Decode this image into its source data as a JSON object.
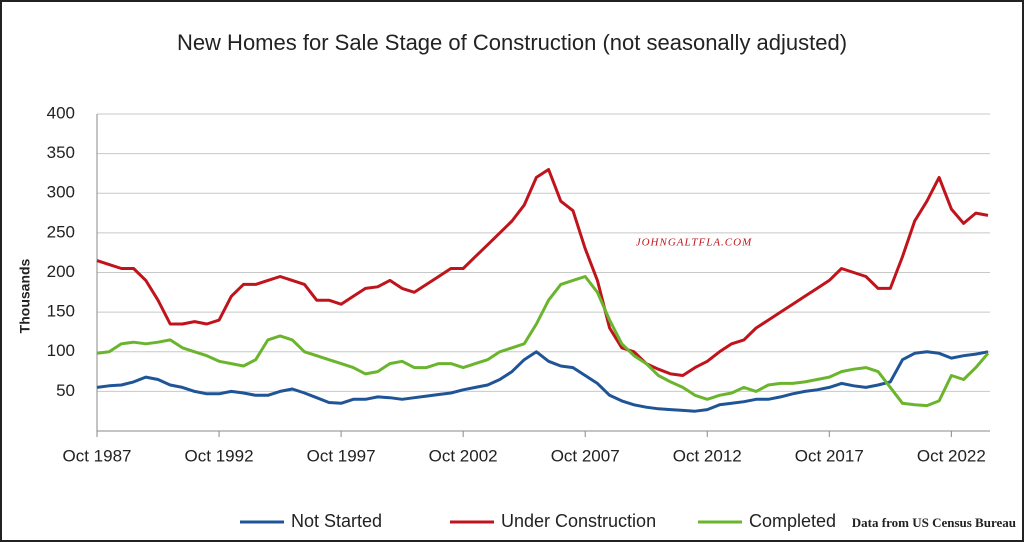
{
  "chart_data": {
    "type": "line",
    "title": "New Homes for Sale Stage of Construction (not seasonally adjusted)",
    "y_label": "Thousands",
    "watermark": "JOHNGALTFLA.COM",
    "source": "Data from US Census Bureau",
    "x": [
      "1987-10",
      "1988-04",
      "1988-10",
      "1989-04",
      "1989-10",
      "1990-04",
      "1990-10",
      "1991-04",
      "1991-10",
      "1992-04",
      "1992-10",
      "1993-04",
      "1993-10",
      "1994-04",
      "1994-10",
      "1995-04",
      "1995-10",
      "1996-04",
      "1996-10",
      "1997-04",
      "1997-10",
      "1998-04",
      "1998-10",
      "1999-04",
      "1999-10",
      "2000-04",
      "2000-10",
      "2001-04",
      "2001-10",
      "2002-04",
      "2002-10",
      "2003-04",
      "2003-10",
      "2004-04",
      "2004-10",
      "2005-04",
      "2005-10",
      "2006-04",
      "2006-10",
      "2007-04",
      "2007-10",
      "2008-04",
      "2008-10",
      "2009-04",
      "2009-10",
      "2010-04",
      "2010-10",
      "2011-04",
      "2011-10",
      "2012-04",
      "2012-10",
      "2013-04",
      "2013-10",
      "2014-04",
      "2014-10",
      "2015-04",
      "2015-10",
      "2016-04",
      "2016-10",
      "2017-04",
      "2017-10",
      "2018-04",
      "2018-10",
      "2019-04",
      "2019-10",
      "2020-04",
      "2020-10",
      "2021-04",
      "2021-10",
      "2022-04",
      "2022-10",
      "2023-04",
      "2023-10",
      "2024-04"
    ],
    "series": [
      {
        "name": "Not Started",
        "color": "#1f5597",
        "values": [
          55,
          57,
          58,
          62,
          68,
          65,
          58,
          55,
          50,
          47,
          47,
          50,
          48,
          45,
          45,
          50,
          53,
          48,
          42,
          36,
          35,
          40,
          40,
          43,
          42,
          40,
          42,
          44,
          46,
          48,
          52,
          55,
          58,
          65,
          75,
          90,
          100,
          88,
          82,
          80,
          70,
          60,
          45,
          38,
          33,
          30,
          28,
          27,
          26,
          25,
          27,
          33,
          35,
          37,
          40,
          40,
          43,
          47,
          50,
          52,
          55,
          60,
          57,
          55,
          58,
          62,
          90,
          98,
          100,
          98,
          92,
          95,
          97,
          100
        ]
      },
      {
        "name": "Under Construction",
        "color": "#c0141c",
        "values": [
          215,
          210,
          205,
          205,
          190,
          165,
          135,
          135,
          138,
          135,
          140,
          170,
          185,
          185,
          190,
          195,
          190,
          185,
          165,
          165,
          160,
          170,
          180,
          182,
          190,
          180,
          175,
          185,
          195,
          205,
          205,
          220,
          235,
          250,
          265,
          285,
          320,
          330,
          290,
          278,
          230,
          190,
          130,
          105,
          100,
          85,
          78,
          72,
          70,
          80,
          88,
          100,
          110,
          115,
          130,
          140,
          150,
          160,
          170,
          180,
          190,
          205,
          200,
          195,
          180,
          180,
          220,
          265,
          290,
          320,
          280,
          262,
          275,
          272
        ]
      },
      {
        "name": "Completed",
        "color": "#6bb52e",
        "values": [
          98,
          100,
          110,
          112,
          110,
          112,
          115,
          105,
          100,
          95,
          88,
          85,
          82,
          90,
          115,
          120,
          115,
          100,
          95,
          90,
          85,
          80,
          72,
          75,
          85,
          88,
          80,
          80,
          85,
          85,
          80,
          85,
          90,
          100,
          105,
          110,
          135,
          165,
          185,
          190,
          195,
          175,
          140,
          110,
          95,
          85,
          70,
          62,
          55,
          45,
          40,
          45,
          48,
          55,
          50,
          58,
          60,
          60,
          62,
          65,
          68,
          75,
          78,
          80,
          75,
          55,
          35,
          33,
          32,
          38,
          70,
          65,
          80,
          98
        ]
      }
    ],
    "xlim": [
      "1987-10",
      "2024-05"
    ],
    "xticks": [
      {
        "value": "1987-10",
        "label": "Oct 1987"
      },
      {
        "value": "1992-10",
        "label": "Oct 1992"
      },
      {
        "value": "1997-10",
        "label": "Oct 1997"
      },
      {
        "value": "2002-10",
        "label": "Oct 2002"
      },
      {
        "value": "2007-10",
        "label": "Oct 2007"
      },
      {
        "value": "2012-10",
        "label": "Oct 2012"
      },
      {
        "value": "2017-10",
        "label": "Oct 2017"
      },
      {
        "value": "2022-10",
        "label": "Oct 2022"
      }
    ],
    "ylim": [
      0,
      400
    ],
    "yticks": [
      50,
      100,
      150,
      200,
      250,
      300,
      350,
      400
    ],
    "grid": true,
    "legend": "bottom"
  }
}
